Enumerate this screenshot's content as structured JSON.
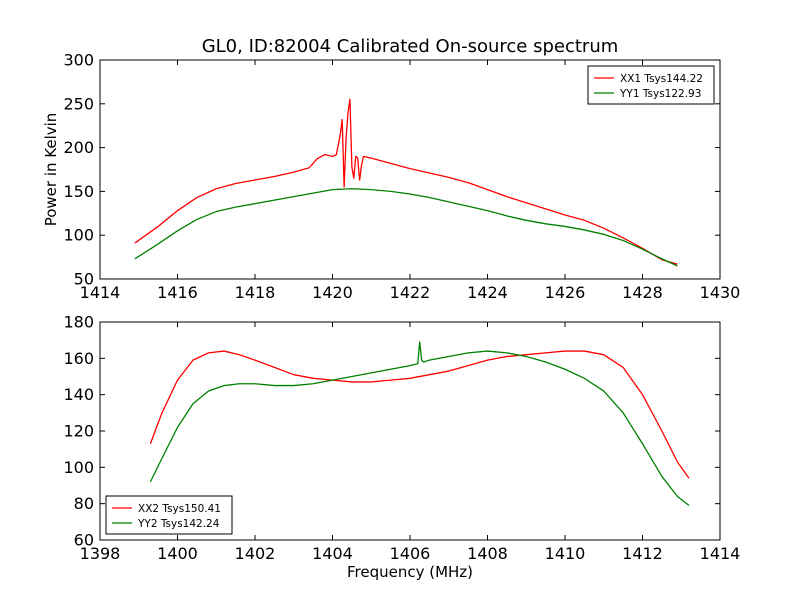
{
  "chart_data": [
    {
      "type": "line",
      "title": "GL0, ID:82004 Calibrated On-source spectrum",
      "xlabel": "",
      "ylabel": "Power in Kelvin",
      "xlim": [
        1414,
        1430
      ],
      "ylim": [
        50,
        300
      ],
      "xticks": [
        1414,
        1416,
        1418,
        1420,
        1422,
        1424,
        1426,
        1428,
        1430
      ],
      "yticks": [
        50,
        100,
        150,
        200,
        250,
        300
      ],
      "grid": false,
      "legend": "top-right",
      "series": [
        {
          "name": "XX1 Tsys144.22",
          "color": "#ff0000",
          "x": [
            1414.9,
            1415.5,
            1416.0,
            1416.5,
            1417.0,
            1417.5,
            1418.0,
            1418.5,
            1419.0,
            1419.4,
            1419.6,
            1419.8,
            1420.0,
            1420.1,
            1420.2,
            1420.25,
            1420.3,
            1420.35,
            1420.4,
            1420.45,
            1420.5,
            1420.55,
            1420.6,
            1420.65,
            1420.7,
            1420.75,
            1420.8,
            1421.0,
            1421.5,
            1422.0,
            1422.5,
            1423.0,
            1423.5,
            1424.0,
            1424.5,
            1425.0,
            1425.5,
            1426.0,
            1426.5,
            1427.0,
            1427.5,
            1428.0,
            1428.5,
            1428.9
          ],
          "y": [
            91,
            110,
            128,
            143,
            153,
            159,
            163,
            167,
            172,
            177,
            187,
            192,
            190,
            192,
            215,
            232,
            155,
            210,
            240,
            255,
            178,
            165,
            190,
            188,
            163,
            180,
            190,
            188,
            182,
            176,
            171,
            166,
            160,
            152,
            144,
            137,
            130,
            123,
            117,
            108,
            97,
            85,
            72,
            67
          ]
        },
        {
          "name": "YY1 Tsys122.93",
          "color": "#008000",
          "x": [
            1414.9,
            1415.5,
            1416.0,
            1416.5,
            1417.0,
            1417.5,
            1418.0,
            1418.5,
            1419.0,
            1419.5,
            1420.0,
            1420.5,
            1421.0,
            1421.5,
            1422.0,
            1422.5,
            1423.0,
            1423.5,
            1424.0,
            1424.5,
            1425.0,
            1425.5,
            1426.0,
            1426.5,
            1427.0,
            1427.5,
            1428.0,
            1428.5,
            1428.9
          ],
          "y": [
            73,
            90,
            105,
            118,
            127,
            132,
            136,
            140,
            144,
            148,
            152,
            153,
            152,
            150,
            147,
            143,
            138,
            133,
            128,
            122,
            117,
            113,
            110,
            106,
            101,
            94,
            84,
            73,
            65
          ]
        }
      ]
    },
    {
      "type": "line",
      "title": "",
      "xlabel": "Frequency (MHz)",
      "ylabel": "",
      "xlim": [
        1398,
        1414
      ],
      "ylim": [
        60,
        180
      ],
      "xticks": [
        1398,
        1400,
        1402,
        1404,
        1406,
        1408,
        1410,
        1412,
        1414
      ],
      "yticks": [
        60,
        80,
        100,
        120,
        140,
        160,
        180
      ],
      "grid": false,
      "legend": "bottom-left",
      "series": [
        {
          "name": "XX2 Tsys150.41",
          "color": "#ff0000",
          "x": [
            1399.3,
            1399.6,
            1400.0,
            1400.4,
            1400.8,
            1401.2,
            1401.6,
            1402.0,
            1402.5,
            1403.0,
            1403.5,
            1404.0,
            1404.5,
            1405.0,
            1405.5,
            1406.0,
            1406.5,
            1407.0,
            1407.5,
            1408.0,
            1408.5,
            1409.0,
            1409.5,
            1410.0,
            1410.5,
            1411.0,
            1411.5,
            1412.0,
            1412.5,
            1412.9,
            1413.2
          ],
          "y": [
            113,
            130,
            148,
            159,
            163,
            164,
            162,
            159,
            155,
            151,
            149,
            148,
            147,
            147,
            148,
            149,
            151,
            153,
            156,
            159,
            161,
            162,
            163,
            164,
            164,
            162,
            155,
            140,
            120,
            103,
            94
          ]
        },
        {
          "name": "YY2 Tsys142.24",
          "color": "#008000",
          "x": [
            1399.3,
            1399.6,
            1400.0,
            1400.4,
            1400.8,
            1401.2,
            1401.6,
            1402.0,
            1402.5,
            1403.0,
            1403.5,
            1404.0,
            1404.5,
            1405.0,
            1405.5,
            1406.0,
            1406.2,
            1406.25,
            1406.3,
            1406.35,
            1406.5,
            1407.0,
            1407.5,
            1408.0,
            1408.5,
            1409.0,
            1409.5,
            1410.0,
            1410.5,
            1411.0,
            1411.5,
            1412.0,
            1412.5,
            1412.9,
            1413.2
          ],
          "y": [
            92,
            105,
            122,
            135,
            142,
            145,
            146,
            146,
            145,
            145,
            146,
            148,
            150,
            152,
            154,
            156,
            157,
            169,
            159,
            158,
            159,
            161,
            163,
            164,
            163,
            161,
            158,
            154,
            149,
            142,
            130,
            113,
            95,
            84,
            79
          ]
        }
      ]
    }
  ]
}
